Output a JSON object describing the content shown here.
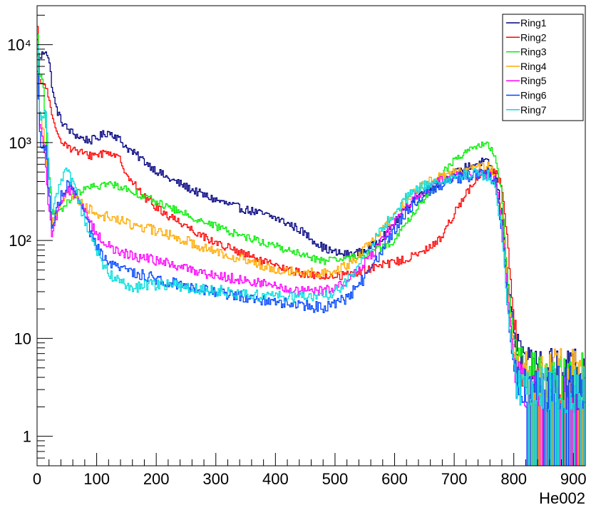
{
  "chart_data": {
    "type": "line",
    "style": "step",
    "xlabel": "He002",
    "ylabel": "",
    "xlim": [
      0,
      920
    ],
    "ylim": [
      0.5,
      25000
    ],
    "yscale": "log",
    "x_ticks": [
      0,
      100,
      200,
      300,
      400,
      500,
      600,
      700,
      800,
      900
    ],
    "x_tick_labels": [
      "0",
      "100",
      "200",
      "300",
      "400",
      "500",
      "600",
      "700",
      "800",
      "900"
    ],
    "y_ticks": [
      1,
      10,
      100,
      1000,
      10000
    ],
    "y_tick_labels": [
      "1",
      "10",
      "10²",
      "10³",
      "10⁴"
    ],
    "legend_position": "top-right",
    "grid": false,
    "bin_width": 2,
    "x": [
      0,
      5,
      10,
      15,
      20,
      25,
      30,
      40,
      50,
      60,
      70,
      80,
      90,
      100,
      110,
      120,
      130,
      140,
      150,
      160,
      170,
      180,
      190,
      200,
      220,
      240,
      260,
      280,
      300,
      320,
      340,
      360,
      380,
      400,
      420,
      440,
      460,
      480,
      500,
      520,
      540,
      560,
      580,
      600,
      620,
      640,
      660,
      680,
      700,
      720,
      740,
      750,
      760,
      770,
      780,
      790,
      800,
      810,
      820,
      830,
      840,
      850,
      860,
      870,
      880,
      890,
      900,
      910,
      918
    ],
    "series": [
      {
        "name": "Ring1",
        "color": "#000080",
        "noise": 0.1,
        "values": [
          12000,
          7000,
          8200,
          9000,
          7000,
          4000,
          2500,
          1700,
          1400,
          1250,
          1150,
          1080,
          1050,
          1100,
          1200,
          1280,
          1200,
          1050,
          900,
          800,
          720,
          650,
          580,
          520,
          430,
          380,
          330,
          290,
          260,
          235,
          215,
          200,
          185,
          170,
          150,
          130,
          105,
          85,
          75,
          72,
          75,
          85,
          110,
          150,
          220,
          290,
          340,
          400,
          480,
          560,
          620,
          640,
          600,
          450,
          200,
          40,
          12,
          7,
          6,
          5,
          6,
          5,
          6,
          5,
          6,
          5,
          6,
          5,
          5
        ]
      },
      {
        "name": "Ring2",
        "color": "#ff0000",
        "noise": 0.1,
        "values": [
          20000,
          4000,
          4000,
          3800,
          2800,
          1800,
          1400,
          1100,
          950,
          850,
          800,
          760,
          740,
          760,
          780,
          800,
          760,
          650,
          500,
          400,
          330,
          280,
          250,
          220,
          180,
          155,
          130,
          110,
          95,
          85,
          75,
          68,
          60,
          55,
          50,
          47,
          44,
          43,
          43,
          45,
          48,
          52,
          56,
          60,
          65,
          72,
          85,
          110,
          190,
          300,
          420,
          480,
          520,
          480,
          380,
          100,
          15,
          5,
          3,
          3,
          3,
          3,
          3,
          3,
          3,
          3,
          3,
          3,
          3
        ]
      },
      {
        "name": "Ring3",
        "color": "#00ee00",
        "noise": 0.09,
        "values": [
          15000,
          5000,
          4500,
          1500,
          500,
          200,
          180,
          200,
          240,
          280,
          310,
          330,
          345,
          360,
          370,
          375,
          370,
          355,
          340,
          320,
          300,
          280,
          265,
          250,
          220,
          195,
          175,
          155,
          140,
          125,
          115,
          105,
          95,
          88,
          80,
          73,
          67,
          62,
          62,
          65,
          70,
          75,
          85,
          100,
          150,
          220,
          320,
          480,
          650,
          820,
          930,
          950,
          900,
          700,
          300,
          40,
          10,
          6,
          5,
          5,
          5,
          5,
          5,
          5,
          5,
          5,
          5,
          5,
          5
        ]
      },
      {
        "name": "Ring4",
        "color": "#ffaa00",
        "noise": 0.12,
        "values": [
          12000,
          2000,
          1500,
          800,
          300,
          150,
          180,
          250,
          300,
          290,
          260,
          230,
          205,
          190,
          180,
          175,
          170,
          160,
          150,
          145,
          140,
          135,
          130,
          125,
          115,
          105,
          95,
          85,
          78,
          72,
          66,
          60,
          55,
          52,
          50,
          48,
          47,
          47,
          48,
          55,
          70,
          95,
          130,
          180,
          260,
          340,
          400,
          450,
          500,
          530,
          560,
          570,
          560,
          420,
          160,
          30,
          8,
          5,
          5,
          5,
          5,
          5,
          5,
          5,
          5,
          5,
          5,
          5,
          5
        ]
      },
      {
        "name": "Ring5",
        "color": "#ff00ff",
        "noise": 0.12,
        "values": [
          10000,
          1500,
          1000,
          600,
          200,
          120,
          160,
          250,
          330,
          320,
          260,
          200,
          150,
          120,
          100,
          88,
          80,
          75,
          72,
          70,
          68,
          66,
          64,
          62,
          58,
          54,
          50,
          47,
          44,
          42,
          40,
          38,
          36,
          34,
          32,
          30,
          30,
          31,
          33,
          38,
          50,
          70,
          100,
          150,
          220,
          300,
          360,
          410,
          450,
          470,
          480,
          480,
          470,
          380,
          150,
          25,
          6,
          4,
          3,
          3,
          3,
          3,
          3,
          3,
          3,
          3,
          3,
          3,
          3
        ]
      },
      {
        "name": "Ring6",
        "color": "#0044ff",
        "noise": 0.14,
        "values": [
          9000,
          1200,
          800,
          1000,
          300,
          120,
          170,
          280,
          360,
          340,
          260,
          180,
          120,
          85,
          68,
          58,
          54,
          52,
          50,
          48,
          46,
          44,
          42,
          40,
          38,
          36,
          34,
          32,
          30,
          28,
          27,
          26,
          25,
          24,
          23,
          22,
          21,
          21,
          22,
          26,
          35,
          50,
          80,
          130,
          200,
          270,
          330,
          380,
          420,
          450,
          470,
          480,
          470,
          370,
          130,
          20,
          5,
          3,
          3,
          3,
          3,
          3,
          3,
          3,
          3,
          3,
          3,
          3,
          3
        ]
      },
      {
        "name": "Ring7",
        "color": "#00dddd",
        "noise": 0.14,
        "values": [
          17000,
          1800,
          2000,
          2200,
          600,
          200,
          250,
          400,
          500,
          380,
          250,
          160,
          110,
          75,
          58,
          48,
          42,
          38,
          35,
          34,
          33,
          34,
          35,
          35,
          35,
          34,
          33,
          32,
          31,
          30,
          29,
          28,
          27,
          27,
          27,
          26,
          26,
          27,
          30,
          38,
          55,
          85,
          130,
          200,
          270,
          330,
          380,
          420,
          450,
          470,
          480,
          470,
          450,
          350,
          120,
          18,
          5,
          3,
          3,
          3,
          3,
          3,
          3,
          3,
          3,
          3,
          3,
          3,
          3
        ]
      }
    ]
  }
}
